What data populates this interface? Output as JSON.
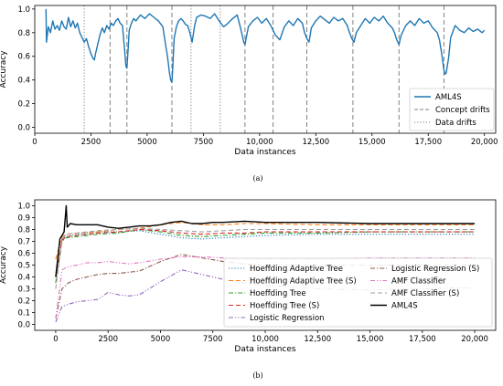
{
  "captions": {
    "a": "(a)",
    "b": "(b)"
  },
  "chart_data": [
    {
      "type": "line",
      "xlabel": "Data instances",
      "ylabel": "Accuracy",
      "xlim": [
        0,
        20500
      ],
      "ylim": [
        -0.05,
        1.03
      ],
      "xticks": [
        0,
        2500,
        5000,
        7500,
        10000,
        12500,
        15000,
        17500,
        20000
      ],
      "xtick_labels": [
        "0",
        "2500",
        "5000",
        "7500",
        "10,000",
        "12,500",
        "15,000",
        "17,500",
        "20,000"
      ],
      "yticks": [
        0.0,
        0.2,
        0.4,
        0.6,
        0.8,
        1.0
      ],
      "ytick_labels": [
        "0.0",
        "0.2",
        "0.4",
        "0.6",
        "0.8",
        "1.0"
      ],
      "legend": {
        "placement": "bottom-right",
        "entries": [
          {
            "label": "AML4S",
            "style": "solid",
            "color": "#1f77b4"
          },
          {
            "label": "Concept drifts",
            "style": "dashed",
            "color": "#808080"
          },
          {
            "label": "Data drifts",
            "style": "dotted",
            "color": "#808080"
          }
        ]
      },
      "concept_drifts": [
        3350,
        4100,
        6100,
        9350,
        10600,
        12100,
        14150,
        16200,
        18200
      ],
      "data_drifts": [
        2200,
        6950,
        8250
      ],
      "series": [
        {
          "name": "AML4S",
          "color": "#1f77b4",
          "x": [
            500,
            520,
            600,
            700,
            800,
            900,
            1000,
            1100,
            1200,
            1300,
            1400,
            1500,
            1600,
            1700,
            1800,
            1900,
            2000,
            2100,
            2200,
            2300,
            2400,
            2500,
            2600,
            2650,
            2700,
            2800,
            2900,
            3000,
            3100,
            3200,
            3300,
            3400,
            3500,
            3600,
            3700,
            3800,
            3900,
            4000,
            4050,
            4100,
            4150,
            4200,
            4300,
            4400,
            4500,
            4700,
            4900,
            5100,
            5300,
            5500,
            5700,
            5800,
            5900,
            6000,
            6050,
            6100,
            6150,
            6200,
            6300,
            6400,
            6500,
            6600,
            6700,
            6800,
            6900,
            7000,
            7100,
            7200,
            7400,
            7600,
            7800,
            8000,
            8200,
            8400,
            8600,
            8800,
            9000,
            9100,
            9200,
            9300,
            9350,
            9400,
            9500,
            9700,
            9900,
            10100,
            10300,
            10500,
            10700,
            10900,
            11100,
            11300,
            11500,
            11700,
            11900,
            12000,
            12100,
            12200,
            12300,
            12500,
            12700,
            12900,
            13100,
            13300,
            13500,
            13700,
            13900,
            14000,
            14100,
            14200,
            14300,
            14500,
            14700,
            14900,
            15100,
            15300,
            15500,
            15700,
            15900,
            16000,
            16100,
            16200,
            16300,
            16500,
            16700,
            16900,
            17100,
            17300,
            17500,
            17700,
            17900,
            18000,
            18100,
            18200,
            18250,
            18300,
            18400,
            18500,
            18700,
            18900,
            19100,
            19300,
            19500,
            19700,
            19900,
            20000
          ],
          "y": [
            1.0,
            0.72,
            0.85,
            0.8,
            0.9,
            0.83,
            0.86,
            0.82,
            0.9,
            0.85,
            0.83,
            0.93,
            0.85,
            0.9,
            0.84,
            0.88,
            0.8,
            0.76,
            0.72,
            0.75,
            0.68,
            0.62,
            0.58,
            0.57,
            0.62,
            0.7,
            0.78,
            0.84,
            0.8,
            0.86,
            0.83,
            0.88,
            0.86,
            0.9,
            0.92,
            0.88,
            0.86,
            0.65,
            0.52,
            0.5,
            0.65,
            0.82,
            0.88,
            0.92,
            0.9,
            0.95,
            0.92,
            0.96,
            0.93,
            0.9,
            0.85,
            0.72,
            0.6,
            0.45,
            0.4,
            0.38,
            0.55,
            0.75,
            0.85,
            0.9,
            0.92,
            0.9,
            0.87,
            0.86,
            0.8,
            0.72,
            0.85,
            0.93,
            0.95,
            0.94,
            0.92,
            0.96,
            0.9,
            0.85,
            0.88,
            0.92,
            0.95,
            0.88,
            0.8,
            0.72,
            0.7,
            0.75,
            0.85,
            0.9,
            0.93,
            0.88,
            0.92,
            0.86,
            0.78,
            0.74,
            0.85,
            0.9,
            0.86,
            0.92,
            0.88,
            0.8,
            0.75,
            0.72,
            0.84,
            0.9,
            0.94,
            0.91,
            0.88,
            0.93,
            0.9,
            0.92,
            0.86,
            0.8,
            0.75,
            0.72,
            0.8,
            0.86,
            0.92,
            0.88,
            0.93,
            0.9,
            0.94,
            0.88,
            0.84,
            0.8,
            0.74,
            0.7,
            0.78,
            0.86,
            0.9,
            0.86,
            0.92,
            0.88,
            0.9,
            0.84,
            0.8,
            0.74,
            0.62,
            0.48,
            0.45,
            0.46,
            0.58,
            0.76,
            0.86,
            0.82,
            0.8,
            0.84,
            0.81,
            0.83,
            0.8,
            0.82
          ]
        }
      ]
    },
    {
      "type": "line",
      "xlabel": "Data instances",
      "ylabel": "Accuracy",
      "xlim": [
        -1000,
        21000
      ],
      "ylim": [
        -0.05,
        1.05
      ],
      "xticks": [
        0,
        2500,
        5000,
        7500,
        10000,
        12500,
        15000,
        17500,
        20000
      ],
      "xtick_labels": [
        "0",
        "2500",
        "5000",
        "7500",
        "10,000",
        "12,500",
        "15,000",
        "17,500",
        "20,000"
      ],
      "yticks": [
        0.0,
        0.1,
        0.2,
        0.3,
        0.4,
        0.5,
        0.6,
        0.7,
        0.8,
        0.9,
        1.0
      ],
      "ytick_labels": [
        "0.0",
        "0.1",
        "0.2",
        "0.3",
        "0.4",
        "0.5",
        "0.6",
        "0.7",
        "0.8",
        "0.9",
        "1.0"
      ],
      "legend": {
        "placement": "bottom-right",
        "columns": 2
      },
      "series": [
        {
          "name": "Hoeffding Adaptive Tree",
          "color": "#1f77b4",
          "style": "dotted",
          "x": [
            0,
            300,
            500,
            1000,
            2000,
            3000,
            4000,
            5000,
            6000,
            7000,
            8000,
            9000,
            10000,
            12500,
            15000,
            17500,
            20000
          ],
          "y": [
            0.35,
            0.72,
            0.74,
            0.76,
            0.78,
            0.78,
            0.79,
            0.76,
            0.73,
            0.72,
            0.73,
            0.74,
            0.75,
            0.76,
            0.76,
            0.76,
            0.76
          ]
        },
        {
          "name": "Hoeffding Adaptive Tree (S)",
          "color": "#ff7f0e",
          "style": "dashed",
          "x": [
            0,
            300,
            500,
            1000,
            2000,
            3000,
            4000,
            5000,
            6000,
            7000,
            8000,
            9000,
            10000,
            12500,
            15000,
            17500,
            20000
          ],
          "y": [
            0.55,
            0.74,
            0.76,
            0.77,
            0.78,
            0.8,
            0.81,
            0.84,
            0.86,
            0.84,
            0.84,
            0.85,
            0.85,
            0.84,
            0.84,
            0.84,
            0.84
          ]
        },
        {
          "name": "Hoeffding Tree",
          "color": "#2ca02c",
          "style": "dashdot",
          "x": [
            0,
            300,
            500,
            1000,
            2000,
            3000,
            4000,
            5000,
            6000,
            7000,
            8000,
            9000,
            10000,
            12500,
            15000,
            17500,
            20000
          ],
          "y": [
            0.35,
            0.7,
            0.73,
            0.74,
            0.76,
            0.77,
            0.8,
            0.78,
            0.75,
            0.74,
            0.75,
            0.76,
            0.77,
            0.77,
            0.78,
            0.78,
            0.78
          ]
        },
        {
          "name": "Hoeffding Tree (S)",
          "color": "#d62728",
          "style": "dashed",
          "x": [
            0,
            300,
            500,
            1000,
            2000,
            3000,
            4000,
            5000,
            6000,
            7000,
            8000,
            9000,
            10000,
            12500,
            15000,
            17500,
            20000
          ],
          "y": [
            0.4,
            0.71,
            0.74,
            0.75,
            0.77,
            0.78,
            0.8,
            0.79,
            0.77,
            0.76,
            0.77,
            0.77,
            0.78,
            0.78,
            0.78,
            0.78,
            0.78
          ]
        },
        {
          "name": "Logistic Regression",
          "color": "#9467bd",
          "style": "dashdotdot",
          "x": [
            0,
            300,
            600,
            1000,
            1500,
            2000,
            2500,
            3000,
            3500,
            4000,
            5000,
            6000,
            7000,
            8000,
            9000,
            10000,
            11000,
            12500,
            15000,
            17500,
            20000
          ],
          "y": [
            0.02,
            0.15,
            0.17,
            0.19,
            0.2,
            0.21,
            0.27,
            0.25,
            0.24,
            0.25,
            0.36,
            0.46,
            0.42,
            0.38,
            0.35,
            0.33,
            0.32,
            0.3,
            0.29,
            0.3,
            0.31
          ]
        },
        {
          "name": "Logistic Regression (S)",
          "color": "#8c564b",
          "style": "dashdot",
          "x": [
            0,
            300,
            600,
            1000,
            1500,
            2000,
            2500,
            3000,
            3500,
            4000,
            5000,
            6000,
            7000,
            8000,
            9000,
            10000,
            12500,
            15000,
            17500,
            20000
          ],
          "y": [
            0.05,
            0.3,
            0.35,
            0.38,
            0.4,
            0.42,
            0.43,
            0.43,
            0.44,
            0.45,
            0.53,
            0.59,
            0.56,
            0.53,
            0.51,
            0.5,
            0.5,
            0.5,
            0.5,
            0.5
          ]
        },
        {
          "name": "AMF Classifier",
          "color": "#e377c2",
          "style": "dashdotdot",
          "x": [
            0,
            300,
            500,
            1000,
            1500,
            2000,
            2500,
            3000,
            3500,
            4000,
            5000,
            6000,
            7000,
            8000,
            9000,
            10000,
            12500,
            15000,
            17500,
            20000
          ],
          "y": [
            0.05,
            0.46,
            0.48,
            0.5,
            0.52,
            0.52,
            0.53,
            0.52,
            0.51,
            0.52,
            0.55,
            0.57,
            0.57,
            0.56,
            0.55,
            0.55,
            0.55,
            0.56,
            0.56,
            0.56
          ]
        },
        {
          "name": "AMF Classifier (S)",
          "color": "#a0a0a0",
          "style": "dashed",
          "x": [
            0,
            300,
            500,
            1000,
            2000,
            3000,
            4000,
            5000,
            6000,
            7000,
            8000,
            9000,
            10000,
            12500,
            15000,
            17500,
            20000
          ],
          "y": [
            0.3,
            0.72,
            0.76,
            0.77,
            0.79,
            0.8,
            0.81,
            0.8,
            0.79,
            0.78,
            0.79,
            0.8,
            0.8,
            0.8,
            0.8,
            0.8,
            0.8
          ]
        },
        {
          "name": "AML4S",
          "color": "#000000",
          "style": "solid",
          "x": [
            0,
            200,
            400,
            500,
            550,
            700,
            1000,
            1500,
            2000,
            2500,
            3000,
            3500,
            4000,
            4500,
            5000,
            5500,
            6000,
            6500,
            7000,
            7500,
            8000,
            9000,
            10000,
            12500,
            15000,
            17500,
            20000
          ],
          "y": [
            0.4,
            0.72,
            0.78,
            1.0,
            0.82,
            0.85,
            0.84,
            0.84,
            0.84,
            0.82,
            0.81,
            0.82,
            0.83,
            0.83,
            0.84,
            0.86,
            0.87,
            0.85,
            0.85,
            0.86,
            0.86,
            0.87,
            0.86,
            0.86,
            0.85,
            0.85,
            0.85
          ]
        }
      ]
    }
  ]
}
